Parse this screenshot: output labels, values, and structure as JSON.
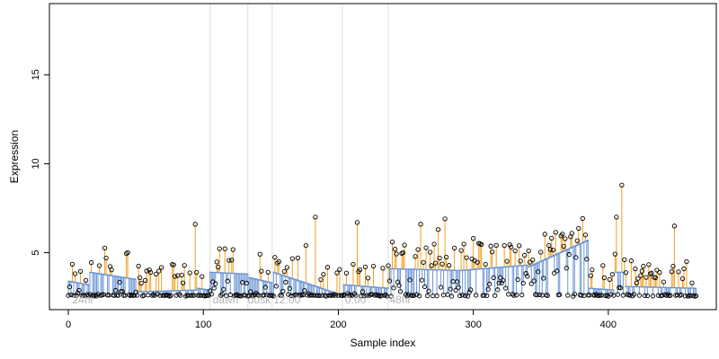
{
  "chart_data": {
    "type": "scatter",
    "title": "",
    "xlabel": "Sample index",
    "ylabel": "Expression",
    "xlim": [
      -14,
      480
    ],
    "ylim": [
      1.8,
      19
    ],
    "xticks": [
      0,
      100,
      200,
      300,
      400
    ],
    "yticks": [
      5,
      10,
      15
    ],
    "grid": false,
    "legend": "none",
    "colors": {
      "fit_line": "#6c95d4",
      "residual_up": "#f2a020",
      "residual_down": "#6c95d4",
      "point_stroke": "#000000",
      "divider": "#dddddd",
      "annotation": "#b4b4b4"
    },
    "annotations": [
      {
        "text": "24hr",
        "x": 3
      },
      {
        "text": "dawn",
        "x": 107
      },
      {
        "text": "dusk",
        "x": 133
      },
      {
        "text": "12:00",
        "x": 152
      },
      {
        "text": "0:00",
        "x": 205
      },
      {
        "text": "48hr",
        "x": 238
      }
    ],
    "dividers": [
      105,
      133,
      151,
      203,
      237
    ],
    "segments": [
      {
        "start": 0,
        "end": 15,
        "fit_start": 3.4,
        "fit_end": 3.2
      },
      {
        "start": 16,
        "end": 50,
        "fit_start": 3.9,
        "fit_end": 3.5
      },
      {
        "start": 51,
        "end": 95,
        "fit_start": 2.8,
        "fit_end": 2.9
      },
      {
        "start": 96,
        "end": 104,
        "fit_start": 3.0,
        "fit_end": 2.9
      },
      {
        "start": 105,
        "end": 133,
        "fit_start": 3.9,
        "fit_end": 3.8
      },
      {
        "start": 134,
        "end": 151,
        "fit_start": 3.6,
        "fit_end": 3.3
      },
      {
        "start": 152,
        "end": 203,
        "fit_start": 3.9,
        "fit_end": 2.6
      },
      {
        "start": 204,
        "end": 237,
        "fit_start": 3.2,
        "fit_end": 3.0
      },
      {
        "start": 238,
        "end": 290,
        "fit_start": 4.1,
        "fit_end": 4.0
      },
      {
        "start": 291,
        "end": 340,
        "fit_start": 4.0,
        "fit_end": 4.3
      },
      {
        "start": 341,
        "end": 385,
        "fit_start": 4.2,
        "fit_end": 5.7
      },
      {
        "start": 386,
        "end": 404,
        "fit_start": 3.0,
        "fit_end": 2.9
      },
      {
        "start": 405,
        "end": 412,
        "fit_start": 3.9,
        "fit_end": 3.9
      },
      {
        "start": 413,
        "end": 465,
        "fit_start": 3.1,
        "fit_end": 3.0
      }
    ],
    "outliers": [
      {
        "x": 94,
        "y": 6.6
      },
      {
        "x": 183,
        "y": 7.0
      },
      {
        "x": 214,
        "y": 6.7
      },
      {
        "x": 261,
        "y": 6.6
      },
      {
        "x": 279,
        "y": 6.9
      },
      {
        "x": 274,
        "y": 6.3
      },
      {
        "x": 406,
        "y": 7.0
      },
      {
        "x": 410,
        "y": 8.8
      },
      {
        "x": 449,
        "y": 6.5
      },
      {
        "x": 28,
        "y": 4.7
      },
      {
        "x": 65,
        "y": 3.8
      },
      {
        "x": 176,
        "y": 5.4
      },
      {
        "x": 240,
        "y": 5.6
      },
      {
        "x": 300,
        "y": 5.8
      },
      {
        "x": 372,
        "y": 5.9
      },
      {
        "x": 383,
        "y": 6.0
      },
      {
        "x": 458,
        "y": 4.5
      }
    ]
  }
}
